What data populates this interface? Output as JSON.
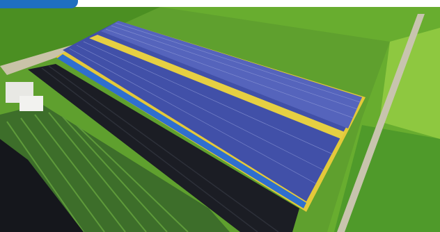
{
  "photo": {
    "subject": "aerial-solar-greenhouse",
    "colors": {
      "field_light": "#7fbf3b",
      "field_dark": "#3f7f1f",
      "panel_blue": "#3f4fa8",
      "panel_light": "#6a78c8",
      "yellow_trim": "#e3c83a",
      "tunnel_dark": "#1a1c22",
      "accent_tab": "#1f6fc0"
    }
  }
}
